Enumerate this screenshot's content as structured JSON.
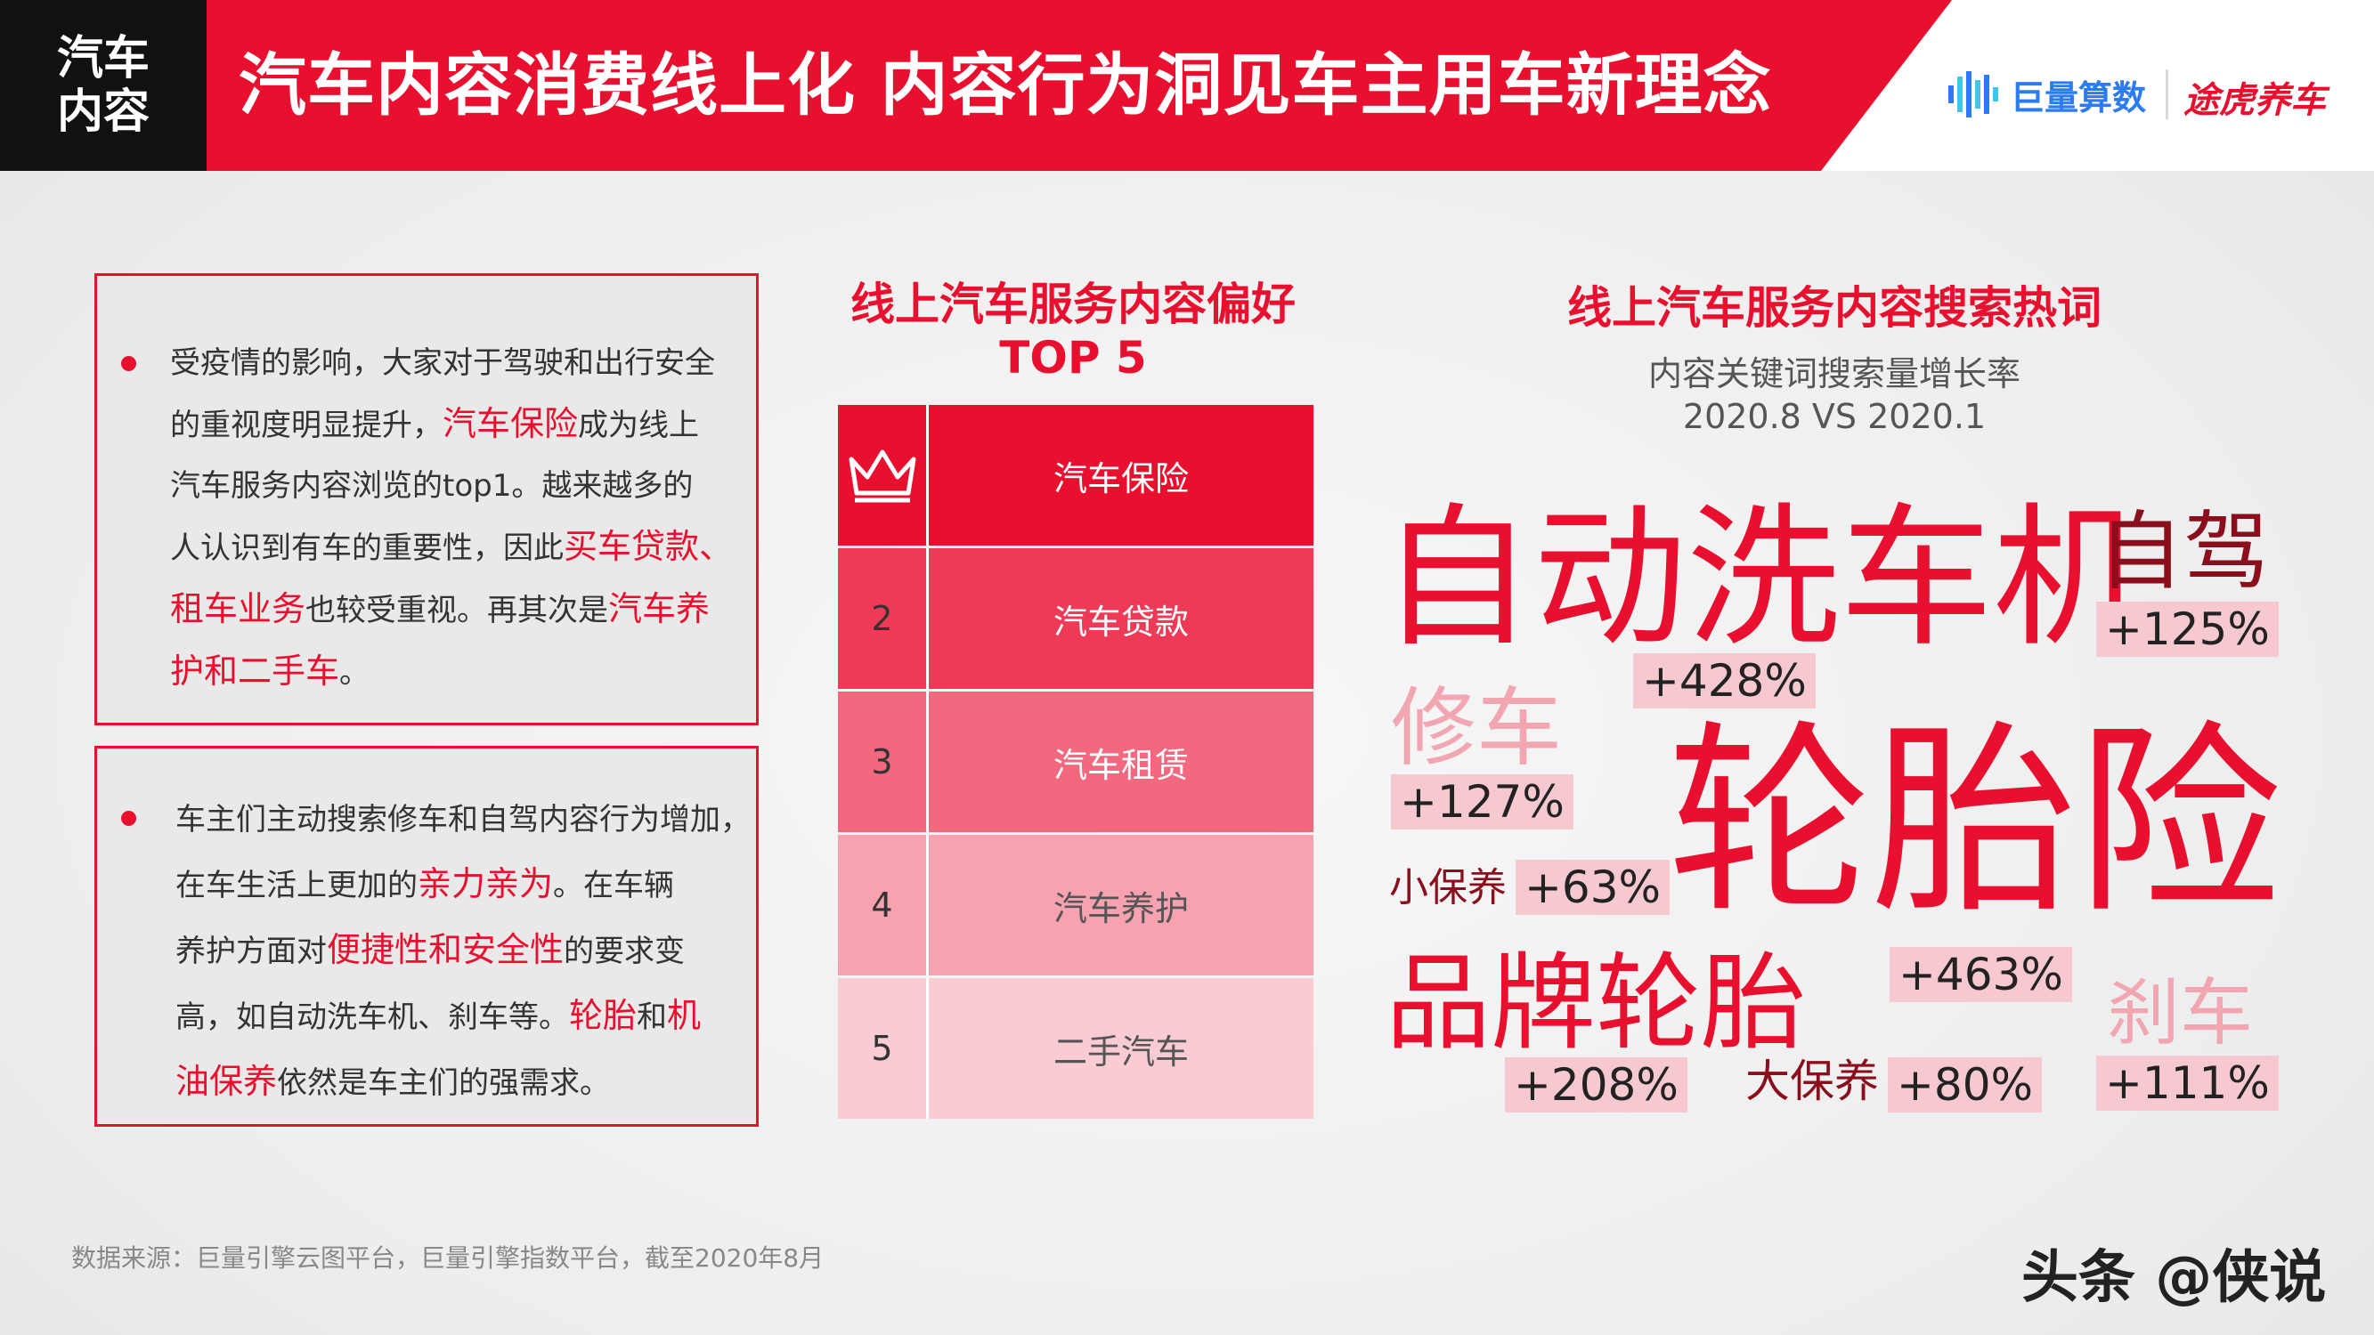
{
  "header": {
    "section_tag": "汽车内容",
    "title": "汽车内容消费线上化 内容行为洞见车主用车新理念",
    "logo_left": "巨量算数",
    "logo_right": "途虎养车"
  },
  "left": {
    "box1": {
      "lines": [
        [
          {
            "t": "受疫情的影响，大家对于驾驶和出行安全",
            "hl": false
          }
        ],
        [
          {
            "t": "的重视度明显提升，",
            "hl": false
          },
          {
            "t": "汽车保险",
            "hl": true
          },
          {
            "t": "成为线上",
            "hl": false
          }
        ],
        [
          {
            "t": "汽车服务内容浏览的top1。越来越多的",
            "hl": false
          }
        ],
        [
          {
            "t": "人认识到有车的重要性，因此",
            "hl": false
          },
          {
            "t": "买车贷款、",
            "hl": true
          }
        ],
        [
          {
            "t": "租车业务",
            "hl": true
          },
          {
            "t": "也较受重视。再其次是",
            "hl": false
          },
          {
            "t": "汽车养",
            "hl": true
          }
        ],
        [
          {
            "t": "护和二手车",
            "hl": true
          },
          {
            "t": "。",
            "hl": false
          }
        ]
      ]
    },
    "box2": {
      "lines": [
        [
          {
            "t": "车主们主动搜索修车和自驾内容行为增加，",
            "hl": false
          }
        ],
        [
          {
            "t": "在车生活上更加的",
            "hl": false
          },
          {
            "t": "亲力亲为",
            "hl": true
          },
          {
            "t": "。在车辆",
            "hl": false
          }
        ],
        [
          {
            "t": "养护方面对",
            "hl": false
          },
          {
            "t": "便捷性和安全性",
            "hl": true
          },
          {
            "t": "的要求变",
            "hl": false
          }
        ],
        [
          {
            "t": "高，如自动洗车机、刹车等。",
            "hl": false
          },
          {
            "t": "轮胎",
            "hl": true
          },
          {
            "t": "和",
            "hl": false
          },
          {
            "t": "机",
            "hl": true
          }
        ],
        [
          {
            "t": "油保养",
            "hl": true
          },
          {
            "t": "依然是车主们的强需求。",
            "hl": false
          }
        ]
      ]
    }
  },
  "ranking": {
    "title_line1": "线上汽车服务内容偏好",
    "title_line2": "TOP 5",
    "rows": [
      {
        "rank": "1",
        "name": "汽车保险",
        "color": "#e8102e",
        "text_color": "#ffffff",
        "icon": "crown-icon"
      },
      {
        "rank": "2",
        "name": "汽车贷款",
        "color": "#ee3a56",
        "text_color": "#ffffff"
      },
      {
        "rank": "3",
        "name": "汽车租赁",
        "color": "#f2687f",
        "text_color": "#ffffff"
      },
      {
        "rank": "4",
        "name": "汽车养护",
        "color": "#f6a2b0",
        "text_color": "#555555"
      },
      {
        "rank": "5",
        "name": "二手汽车",
        "color": "#f9cbd3",
        "text_color": "#555555"
      }
    ]
  },
  "wordcloud": {
    "title": "线上汽车服务内容搜索热词",
    "subtitle_line1": "内容关键词搜索量增长率",
    "subtitle_line2": "2020.8 VS 2020.1",
    "words": [
      {
        "term": "自动洗车机",
        "growth": "+428%"
      },
      {
        "term": "自驾",
        "growth": "+125%"
      },
      {
        "term": "修车",
        "growth": "+127%"
      },
      {
        "term": "轮胎险",
        "growth": "+463%"
      },
      {
        "term": "小保养",
        "growth": "+63%"
      },
      {
        "term": "品牌轮胎",
        "growth": "+208%"
      },
      {
        "term": "大保养",
        "growth": "+80%"
      },
      {
        "term": "刹车",
        "growth": "+111%"
      }
    ]
  },
  "footer": {
    "source": "数据来源：巨量引擎云图平台，巨量引擎指数平台，截至2020年8月",
    "watermark": "头条 @侠说"
  },
  "colors": {
    "accent": "#e8102e",
    "dark": "#111111",
    "pink": "#f6c8cf"
  }
}
